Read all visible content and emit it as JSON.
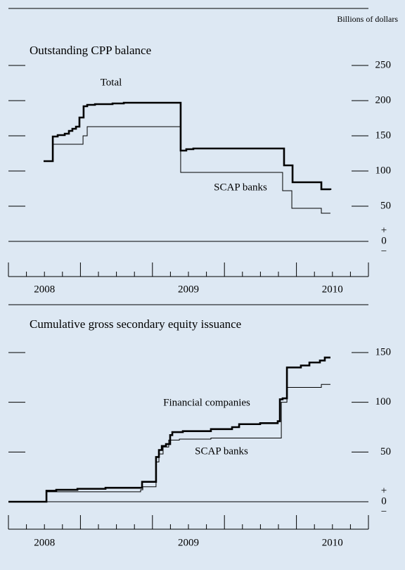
{
  "chart_data": [
    {
      "type": "line",
      "step": true,
      "title": "Outstanding CPP balance",
      "ylabel": "Billions of dollars",
      "xlim": [
        2008.25,
        2010.75
      ],
      "ylim": [
        0,
        250
      ],
      "yticks": [
        0,
        50,
        100,
        150,
        200,
        250
      ],
      "zero_signs": [
        "+",
        "−"
      ],
      "xticks": [
        {
          "value": 2008.5,
          "label": "2008"
        },
        {
          "value": 2009.5,
          "label": "2009"
        },
        {
          "value": 2010.5,
          "label": "2010"
        }
      ],
      "xtickmarks": [
        2008.25,
        2008.375,
        2008.5,
        2008.625,
        2008.75,
        2008.875,
        2009,
        2009.125,
        2009.25,
        2009.375,
        2009.5,
        2009.625,
        2009.75,
        2009.875,
        2010,
        2010.125,
        2010.25,
        2010.375,
        2010.5,
        2010.625,
        2010.75
      ],
      "annotations": [
        "Total",
        "SCAP banks"
      ],
      "series": [
        {
          "name": "Total",
          "color": "#000000",
          "width": 2.6,
          "x": [
            2008.494,
            2008.558,
            2008.592,
            2008.641,
            2008.67,
            2008.694,
            2008.719,
            2008.743,
            2008.772,
            2008.797,
            2008.851,
            2008.973,
            2009.051,
            2009.446,
            2009.485,
            2009.534,
            2010.164,
            2010.223,
            2010.423,
            2010.486
          ],
          "values": [
            114,
            149,
            151,
            153,
            157,
            160,
            163,
            176,
            192,
            194,
            195,
            196,
            197,
            129,
            131,
            132,
            108,
            84,
            74,
            73
          ]
        },
        {
          "name": "SCAP banks",
          "color": "#000000",
          "width": 1,
          "x": [
            2008.558,
            2008.768,
            2008.797,
            2009.446,
            2010.154,
            2010.218,
            2010.423,
            2010.486
          ],
          "values": [
            138,
            150,
            163,
            98,
            72,
            47,
            40,
            40
          ]
        }
      ]
    },
    {
      "type": "line",
      "step": true,
      "title": "Cumulative gross secondary equity issuance",
      "xlim": [
        2008.25,
        2010.75
      ],
      "ylim": [
        0,
        150
      ],
      "yticks": [
        0,
        50,
        100,
        150
      ],
      "zero_signs": [
        "+",
        "−"
      ],
      "xticks": [
        {
          "value": 2008.5,
          "label": "2008"
        },
        {
          "value": 2009.5,
          "label": "2009"
        },
        {
          "value": 2010.5,
          "label": "2010"
        }
      ],
      "xtickmarks": [
        2008.25,
        2008.375,
        2008.5,
        2008.625,
        2008.75,
        2008.875,
        2009,
        2009.125,
        2009.25,
        2009.375,
        2009.5,
        2009.625,
        2009.75,
        2009.875,
        2010,
        2010.125,
        2010.25,
        2010.375,
        2010.5,
        2010.625,
        2010.75
      ],
      "annotations": [
        "Financial companies",
        "SCAP banks"
      ],
      "series": [
        {
          "name": "Financial companies",
          "color": "#000000",
          "width": 2.6,
          "x": [
            2008.25,
            2008.514,
            2008.582,
            2008.729,
            2008.924,
            2009.178,
            2009.275,
            2009.295,
            2009.315,
            2009.344,
            2009.373,
            2009.388,
            2009.461,
            2009.656,
            2009.803,
            2009.852,
            2009.998,
            2010.12,
            2010.135,
            2010.154,
            2010.184,
            2010.281,
            2010.34,
            2010.413,
            2010.447,
            2010.486
          ],
          "values": [
            0,
            11,
            12,
            13,
            14,
            20,
            45,
            52,
            56,
            58,
            67,
            70,
            71,
            73,
            75,
            78,
            79,
            81,
            103,
            104,
            135,
            137,
            140,
            142,
            145,
            145
          ]
        },
        {
          "name": "SCAP banks",
          "color": "#000000",
          "width": 1,
          "x": [
            2008.25,
            2008.514,
            2009.168,
            2009.183,
            2009.275,
            2009.295,
            2009.324,
            2009.363,
            2009.437,
            2009.656,
            2010.145,
            2010.184,
            2010.423,
            2010.486
          ],
          "values": [
            0,
            10,
            12,
            15,
            40,
            48,
            55,
            62,
            63,
            64,
            100,
            115,
            118,
            118
          ]
        }
      ]
    }
  ]
}
